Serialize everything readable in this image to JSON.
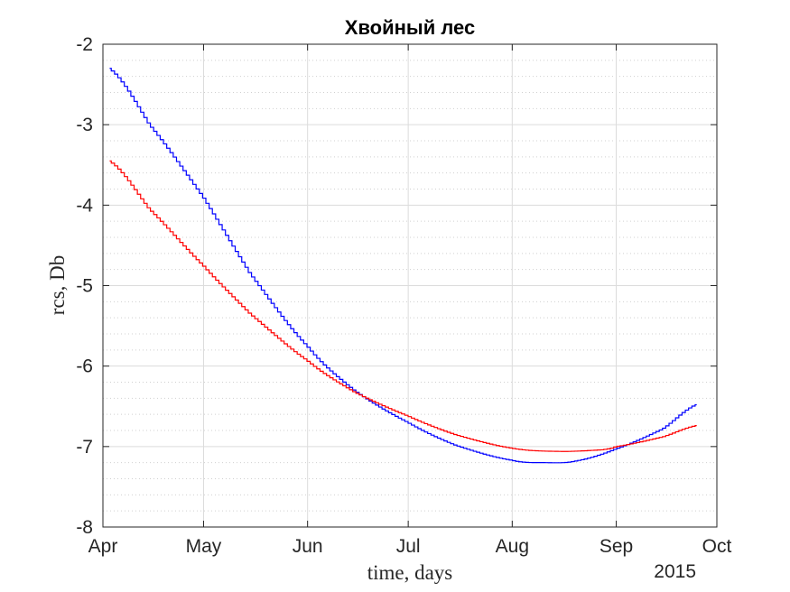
{
  "chart_data": {
    "type": "line",
    "title": "Хвойный лес",
    "xlabel": "time, days",
    "ylabel": "rcs, Db",
    "x_secondary_label": "2015",
    "x_ticks": [
      "Apr",
      "May",
      "Jun",
      "Jul",
      "Aug",
      "Sep",
      "Oct"
    ],
    "x_tick_dates": [
      "2015-04-01",
      "2015-05-01",
      "2015-06-01",
      "2015-07-01",
      "2015-08-01",
      "2015-09-01",
      "2015-10-01"
    ],
    "xlim": [
      "2015-04-01",
      "2015-10-01"
    ],
    "y_ticks": [
      -2,
      -3,
      -4,
      -5,
      -6,
      -7,
      -8
    ],
    "ylim": [
      -8,
      -2
    ],
    "grid": "major and minor",
    "series": [
      {
        "color": "#0000ff",
        "x": [
          "2015-04-03",
          "2015-04-15",
          "2015-05-01",
          "2015-05-15",
          "2015-06-01",
          "2015-06-15",
          "2015-07-01",
          "2015-07-15",
          "2015-08-01",
          "2015-08-11",
          "2015-08-20",
          "2015-09-01",
          "2015-09-15",
          "2015-09-25"
        ],
        "values": [
          -2.3,
          -3.0,
          -3.9,
          -4.85,
          -5.75,
          -6.3,
          -6.7,
          -6.98,
          -7.17,
          -7.2,
          -7.18,
          -7.03,
          -6.78,
          -6.48
        ]
      },
      {
        "color": "#ff0000",
        "x": [
          "2015-04-03",
          "2015-04-15",
          "2015-05-01",
          "2015-05-15",
          "2015-06-01",
          "2015-06-15",
          "2015-07-01",
          "2015-07-15",
          "2015-08-01",
          "2015-08-15",
          "2015-08-28",
          "2015-09-01",
          "2015-09-15",
          "2015-09-25"
        ],
        "values": [
          -3.45,
          -4.05,
          -4.75,
          -5.35,
          -5.93,
          -6.32,
          -6.62,
          -6.85,
          -7.02,
          -7.06,
          -7.04,
          -7.0,
          -6.88,
          -6.74
        ]
      }
    ]
  }
}
